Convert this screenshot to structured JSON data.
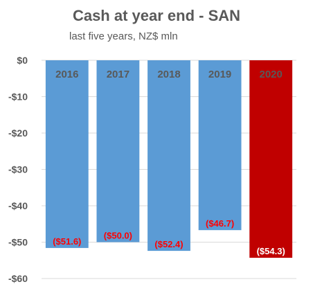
{
  "chart_data": {
    "type": "bar",
    "title": "Cash at year end - SAN",
    "subtitle": "last five years, NZ$ mln",
    "categories": [
      "2016",
      "2017",
      "2018",
      "2019",
      "2020"
    ],
    "values": [
      -51.6,
      -50.0,
      -52.4,
      -46.7,
      -54.3
    ],
    "data_labels": [
      "($51.6)",
      "($50.0)",
      "($52.4)",
      "($46.7)",
      "($54.3)"
    ],
    "y_ticks": [
      0,
      -10,
      -20,
      -30,
      -40,
      -50,
      -60
    ],
    "y_tick_labels": [
      "$0",
      "-$10",
      "-$20",
      "-$30",
      "-$40",
      "-$50",
      "-$60"
    ],
    "ylim": [
      -60,
      0
    ],
    "grid": true,
    "legend": "none",
    "xlabel": "",
    "ylabel": "",
    "colors": {
      "bar": "#5b9bd5",
      "highlight_bar": "#c00000",
      "highlight_category": "2020",
      "label_text": "#ff0000",
      "highlight_label_text": "#ffffff",
      "highlight_category_text": "#e06666",
      "category_text": "#595959",
      "grid": "#d9d9d9"
    }
  }
}
